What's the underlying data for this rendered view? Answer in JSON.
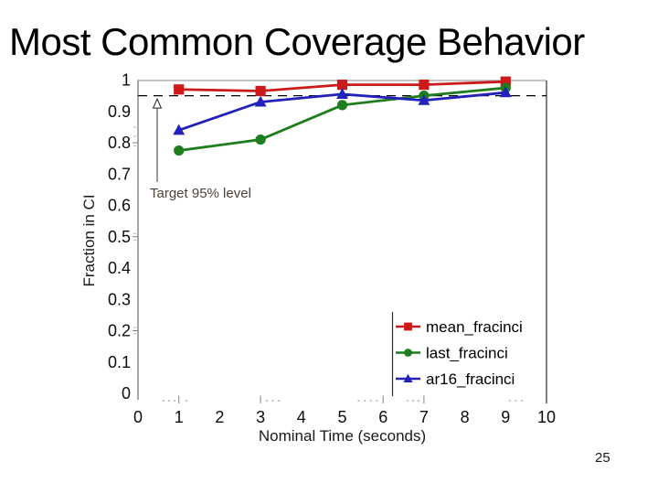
{
  "slide": {
    "title": "Most Common Coverage Behavior",
    "page_number": "25"
  },
  "chart_data": {
    "type": "line",
    "title": "",
    "xlabel": "Nominal Time (seconds)",
    "ylabel": "Fraction in CI",
    "xlim": [
      0,
      10
    ],
    "ylim": [
      0,
      1
    ],
    "grid": false,
    "x_tick_labels": [
      "0",
      "1",
      "2",
      "3",
      "4",
      "5",
      "6",
      "7",
      "8",
      "9",
      "10"
    ],
    "y_tick_labels": [
      "0",
      "0.1",
      "0.2",
      "0.3",
      "0.4",
      "0.5",
      "0.6",
      "0.7",
      "0.8",
      "0.9",
      "1"
    ],
    "x_major_tick_marks": [
      1,
      3,
      6,
      7
    ],
    "y_major_tick_marks": [
      0.2,
      0.5,
      0.8
    ],
    "x_minor_ticks": [
      0.62,
      0.76,
      0.9,
      1.18,
      3.15,
      3.3,
      3.45,
      5.4,
      5.55,
      5.7,
      5.85,
      6.6,
      6.73,
      6.86,
      9.1,
      9.25,
      9.4
    ],
    "y_minor_ticks": [
      0.85,
      0.82,
      0.79,
      0.51,
      0.49,
      0.21,
      0.19
    ],
    "x": [
      1,
      3,
      5,
      7,
      9
    ],
    "series": [
      {
        "name": "mean_fracinci",
        "color": "#cc1a1a",
        "marker": "square",
        "values": [
          0.97,
          0.965,
          0.985,
          0.985,
          0.995
        ]
      },
      {
        "name": "last_fracinci",
        "color": "#1e7d1e",
        "marker": "circle",
        "values": [
          0.775,
          0.81,
          0.92,
          0.95,
          0.975
        ]
      },
      {
        "name": "ar16_fracinci",
        "color": "#2222bb",
        "marker": "triangle",
        "values": [
          0.84,
          0.93,
          0.955,
          0.935,
          0.96
        ]
      }
    ],
    "target_line": {
      "value": 0.95,
      "label": "Target 95% level",
      "style": "dashed",
      "color": "#000000",
      "label_color": "#4e4237"
    },
    "legend_position": "bottom-right"
  }
}
